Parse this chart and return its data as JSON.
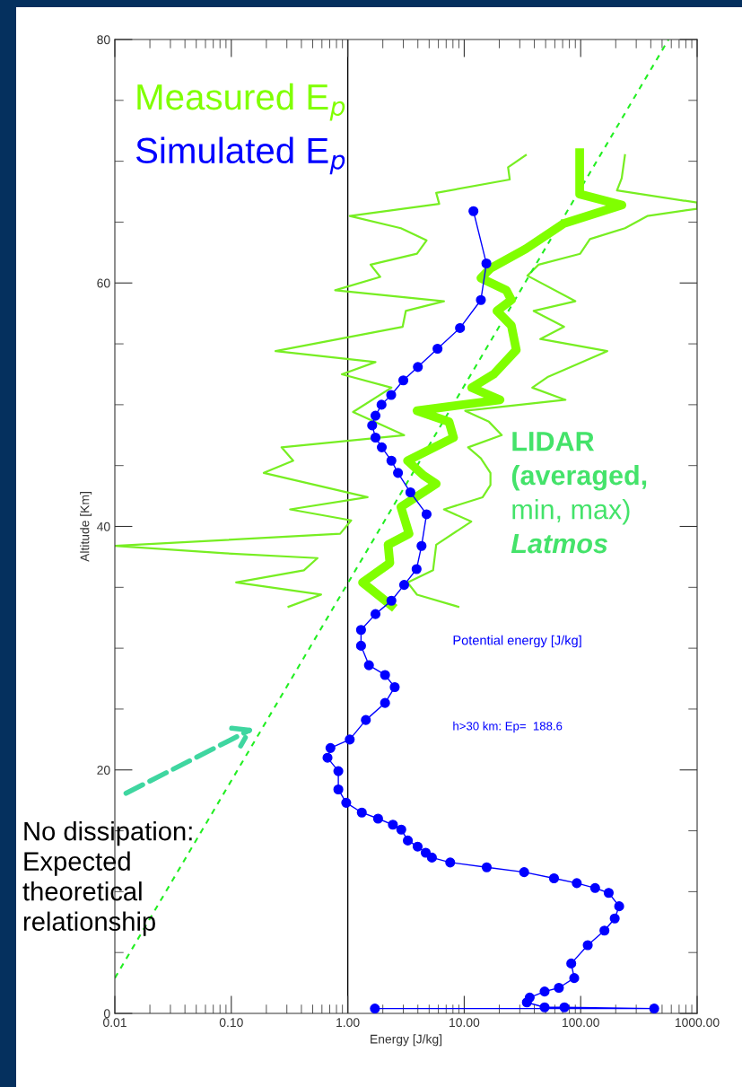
{
  "chart_data": {
    "type": "line",
    "xlabel": "Energy [J/kg]",
    "ylabel": "Altitude [Km]",
    "log": "x",
    "xlim": [
      0.01,
      1000
    ],
    "ylim": [
      0,
      80
    ],
    "xticks": [
      {
        "value": 0.01,
        "label": "0.01"
      },
      {
        "value": 0.1,
        "label": "0.10"
      },
      {
        "value": 1,
        "label": "1.00"
      },
      {
        "value": 10,
        "label": "10.00"
      },
      {
        "value": 100,
        "label": "100.00"
      },
      {
        "value": 1000,
        "label": "1000.00"
      }
    ],
    "yticks": [
      0,
      20,
      40,
      60,
      80
    ],
    "grid": false,
    "legend": "top left",
    "series": [
      {
        "name": "Simulated E$_{p}$",
        "color": "#0000ff",
        "marker": "circle",
        "x": [
          12.0,
          15.5,
          13.9,
          9.2,
          5.9,
          4.0,
          3.0,
          2.36,
          1.95,
          1.73,
          1.62,
          1.73,
          1.96,
          2.37,
          2.7,
          3.45,
          4.75,
          4.3,
          3.9,
          3.05,
          2.37,
          1.73,
          1.3,
          1.3,
          1.52,
          2.09,
          2.53,
          2.09,
          1.43,
          1.04,
          0.71,
          0.67,
          0.83,
          0.83,
          0.97,
          1.32,
          1.82,
          2.44,
          2.88,
          3.28,
          3.98,
          4.67,
          5.28,
          7.58,
          15.6,
          32.7,
          59,
          92.6,
          133,
          174,
          214,
          196,
          160,
          115,
          83,
          88,
          65,
          49,
          36.5,
          34.5,
          49,
          72.5,
          428,
          1.71
        ],
        "values": [
          65.9,
          61.6,
          58.6,
          56.3,
          54.6,
          53.1,
          52.0,
          50.8,
          50.0,
          49.1,
          48.3,
          47.3,
          46.5,
          45.4,
          44.4,
          42.8,
          41.0,
          38.4,
          36.5,
          35.2,
          33.9,
          32.8,
          31.5,
          30.2,
          28.6,
          27.8,
          26.8,
          25.5,
          24.1,
          22.5,
          21.8,
          21.0,
          19.9,
          18.4,
          17.3,
          16.5,
          16.0,
          15.5,
          15.1,
          14.2,
          13.7,
          13.2,
          12.8,
          12.4,
          12.0,
          11.6,
          11.1,
          10.7,
          10.3,
          9.9,
          8.8,
          7.8,
          6.8,
          5.6,
          4.1,
          2.9,
          2.1,
          1.8,
          1.3,
          0.9,
          0.5,
          0.5,
          0.4,
          0.4
        ]
      },
      {
        "name": "Measured E$_{p}$",
        "color": "#80ff00",
        "marker": "none",
        "x": [
          98,
          98,
          98,
          226,
          72,
          33.8,
          16.8,
          13.9,
          23,
          25.4,
          19.1,
          25.4,
          28,
          17.9,
          11.6,
          20.3,
          3.93,
          7.4,
          8.1,
          3.26,
          4.46,
          5.75,
          2.86,
          3.36,
          2.22,
          2.3,
          1.34,
          2.37
        ],
        "values": [
          70.7,
          68.9,
          67.3,
          66.4,
          64.9,
          62.8,
          61.2,
          60.4,
          59.4,
          58.6,
          57.7,
          56.5,
          54.5,
          52.5,
          51.4,
          50.4,
          49.5,
          48.6,
          47.3,
          45.4,
          44.2,
          43.5,
          41.6,
          39.4,
          38.5,
          37.0,
          35.4,
          33.5
        ]
      },
      {
        "color": "#77ee22",
        "marker": "none",
        "x": [
          33.8,
          23.8,
          24.6,
          5.75,
          6.1,
          1.04,
          2.86,
          4.75,
          3.93,
          1.57,
          1.9,
          0.78,
          6.7,
          3.15,
          2.96,
          0.24,
          1.73,
          0.89,
          2.37,
          1.11,
          3.05,
          0.27,
          0.34,
          0.19,
          1.48,
          0.32,
          1.07,
          0.86,
          0.01,
          0.088,
          0.55,
          0.42,
          0.11,
          0.59,
          0.31
        ],
        "values": [
          70.5,
          69.5,
          68.5,
          67.4,
          66.5,
          65.5,
          64.5,
          63.5,
          62.4,
          61.5,
          60.5,
          59.4,
          58.5,
          57.7,
          56.4,
          54.4,
          53.5,
          52.5,
          51.4,
          49.4,
          47.5,
          46.5,
          45.4,
          44.4,
          42.4,
          41.4,
          40.5,
          39.4,
          38.4,
          37.8,
          37.4,
          36.4,
          35.4,
          34.4,
          33.4
        ]
      },
      {
        "color": "#77ee22",
        "marker": "none",
        "x": [
          240,
          225,
          205,
          1000,
          1000,
          373,
          240,
          120,
          99,
          43.5,
          34.9,
          90,
          39.5,
          72,
          45,
          169,
          52.6,
          38.4,
          74,
          10.2,
          16.3,
          21,
          10.8,
          13.9,
          16.8,
          16.8,
          14.4,
          6.7,
          11.5,
          5.75,
          5.4,
          3.26,
          3.93,
          8.9
        ],
        "values": [
          70.5,
          68.6,
          67.6,
          66.6,
          66.1,
          65.5,
          64.5,
          63.6,
          62.4,
          61.5,
          60.6,
          58.5,
          57.7,
          56.4,
          55.4,
          54.4,
          52.3,
          51.4,
          50.4,
          49.5,
          48.6,
          47.5,
          46.5,
          45.6,
          44.4,
          43.4,
          42.4,
          41.4,
          40.4,
          38.5,
          36.4,
          35.4,
          34.4,
          33.4
        ]
      },
      {
        "color": "#22ee22",
        "marker": "none",
        "line_style": "dashed",
        "x": [
          0.01,
          568
        ],
        "values": [
          2.9,
          80
        ]
      }
    ],
    "ref_lines": [
      {
        "axis": "x",
        "value": 1,
        "color": "#000000"
      }
    ],
    "annotations": [
      "LIDAR",
      "(averaged,",
      "min, max)",
      "Latmos",
      "Potential energy [J/kg]",
      "h>30 km: Ep=  188.6",
      "No dissipation:\nExpected\ntheoretical\nrelationship"
    ]
  }
}
